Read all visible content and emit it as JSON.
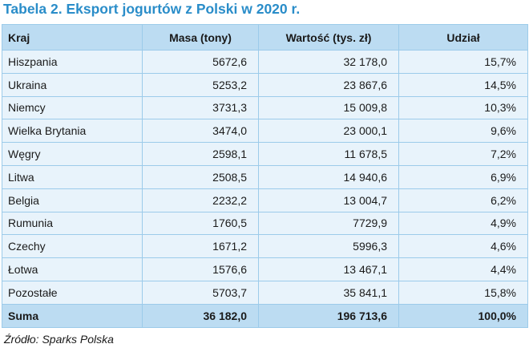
{
  "title": "Tabela 2. Eksport jogurtów z Polski w 2020 r.",
  "columns": [
    "Kraj",
    "Masa (tony)",
    "Wartość (tys. zł)",
    "Udział"
  ],
  "rows": [
    [
      "Hiszpania",
      "5672,6",
      "32 178,0",
      "15,7%"
    ],
    [
      "Ukraina",
      "5253,2",
      "23 867,6",
      "14,5%"
    ],
    [
      "Niemcy",
      "3731,3",
      "15 009,8",
      "10,3%"
    ],
    [
      "Wielka Brytania",
      "3474,0",
      "23 000,1",
      "9,6%"
    ],
    [
      "Węgry",
      "2598,1",
      "11 678,5",
      "7,2%"
    ],
    [
      "Litwa",
      "2508,5",
      "14 940,6",
      "6,9%"
    ],
    [
      "Belgia",
      "2232,2",
      "13 004,7",
      "6,2%"
    ],
    [
      "Rumunia",
      "1760,5",
      "7729,9",
      "4,9%"
    ],
    [
      "Czechy",
      "1671,2",
      "5996,3",
      "4,6%"
    ],
    [
      "Łotwa",
      "1576,6",
      "13 467,1",
      "4,4%"
    ],
    [
      "Pozostałe",
      "5703,7",
      "35 841,1",
      "15,8%"
    ]
  ],
  "sum_row": [
    "Suma",
    "36 182,0",
    "196 713,6",
    "100,0%"
  ],
  "source": "Źródło: Sparks Polska"
}
